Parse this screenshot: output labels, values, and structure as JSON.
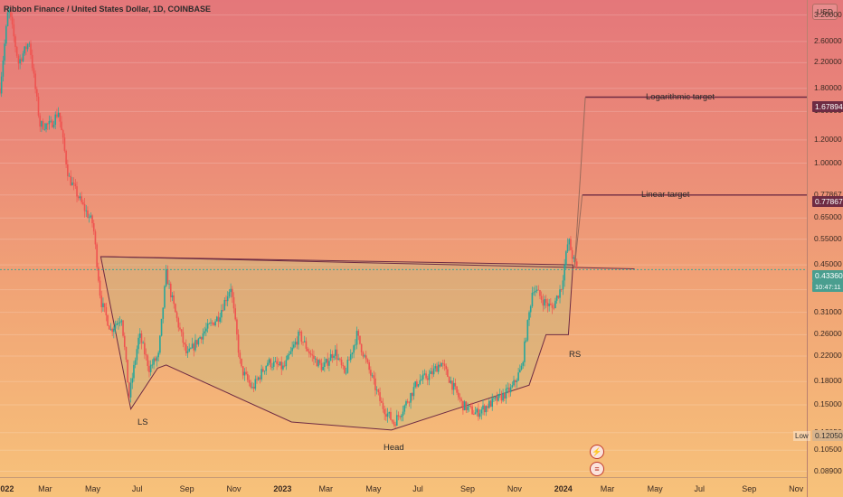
{
  "header": {
    "title": "Ribbon Finance / United States Dollar, 1D, COINBASE"
  },
  "currency_button": "USD",
  "price_axis": {
    "ticks": [
      "3.20000",
      "2.60000",
      "2.20000",
      "1.80000",
      "1.50000",
      "1.20000",
      "1.00000",
      "0.77867",
      "0.65000",
      "0.55000",
      "0.45000",
      "0.37000",
      "0.31000",
      "0.26000",
      "0.22000",
      "0.18000",
      "0.15000",
      "0.12050",
      "0.10500",
      "0.08900"
    ]
  },
  "time_axis": {
    "labels": [
      "2022",
      "Mar",
      "May",
      "Jul",
      "Sep",
      "Nov",
      "2023",
      "Mar",
      "May",
      "Jul",
      "Sep",
      "Nov",
      "2024",
      "Mar",
      "May",
      "Jul",
      "Sep",
      "Nov"
    ]
  },
  "price_tags": {
    "log_target": "1.67894",
    "linear_target": "0.77867",
    "current": "0.43360",
    "current_countdown": "10:47:11",
    "low": "0.12050",
    "low_label": "Low"
  },
  "annotations": {
    "log_target_label": "Logarithmic target",
    "linear_target_label": "Linear target",
    "ls": "LS",
    "head": "Head",
    "rs": "RS"
  },
  "icons": [
    "lightning-icon",
    "earnings-icon"
  ],
  "colors": {
    "up": "#26a69a",
    "down": "#ef5350",
    "pattern_line": "#6e2b43",
    "pattern_fill": "rgba(190,190,130,0.35)",
    "target_line": "#6e2b43",
    "current_tag": "#4a9e8f"
  },
  "chart_data": {
    "type": "candlestick",
    "title": "Ribbon Finance / United States Dollar, 1D, COINBASE",
    "y_scale": "log",
    "ylim": [
      0.085,
      3.6
    ],
    "x_range": [
      "2022-01-01",
      "2024-11-15"
    ],
    "path": [
      [
        "2022-01-01",
        1.8
      ],
      [
        "2022-01-12",
        3.4
      ],
      [
        "2022-01-25",
        2.2
      ],
      [
        "2022-02-08",
        2.6
      ],
      [
        "2022-02-22",
        1.35
      ],
      [
        "2022-03-08",
        1.35
      ],
      [
        "2022-03-18",
        1.5
      ],
      [
        "2022-03-31",
        0.9
      ],
      [
        "2022-04-18",
        0.72
      ],
      [
        "2022-05-02",
        0.62
      ],
      [
        "2022-05-12",
        0.34
      ],
      [
        "2022-05-25",
        0.27
      ],
      [
        "2022-06-08",
        0.3
      ],
      [
        "2022-06-18",
        0.16
      ],
      [
        "2022-07-01",
        0.26
      ],
      [
        "2022-07-14",
        0.2
      ],
      [
        "2022-07-26",
        0.22
      ],
      [
        "2022-08-05",
        0.42
      ],
      [
        "2022-08-18",
        0.3
      ],
      [
        "2022-09-01",
        0.22
      ],
      [
        "2022-09-20",
        0.26
      ],
      [
        "2022-10-12",
        0.3
      ],
      [
        "2022-10-28",
        0.38
      ],
      [
        "2022-11-10",
        0.2
      ],
      [
        "2022-11-25",
        0.17
      ],
      [
        "2022-12-15",
        0.21
      ],
      [
        "2023-01-05",
        0.2
      ],
      [
        "2023-01-25",
        0.26
      ],
      [
        "2023-02-10",
        0.22
      ],
      [
        "2023-02-25",
        0.2
      ],
      [
        "2023-03-12",
        0.23
      ],
      [
        "2023-03-25",
        0.19
      ],
      [
        "2023-04-10",
        0.26
      ],
      [
        "2023-04-25",
        0.2
      ],
      [
        "2023-05-12",
        0.15
      ],
      [
        "2023-05-28",
        0.13
      ],
      [
        "2023-06-12",
        0.15
      ],
      [
        "2023-06-28",
        0.18
      ],
      [
        "2023-07-15",
        0.19
      ],
      [
        "2023-07-28",
        0.21
      ],
      [
        "2023-08-10",
        0.18
      ],
      [
        "2023-08-25",
        0.15
      ],
      [
        "2023-09-12",
        0.14
      ],
      [
        "2023-09-28",
        0.15
      ],
      [
        "2023-10-15",
        0.16
      ],
      [
        "2023-10-28",
        0.17
      ],
      [
        "2023-11-10",
        0.2
      ],
      [
        "2023-11-25",
        0.38
      ],
      [
        "2023-12-08",
        0.34
      ],
      [
        "2023-12-20",
        0.32
      ],
      [
        "2024-01-01",
        0.38
      ],
      [
        "2024-01-10",
        0.55
      ],
      [
        "2024-01-16",
        0.47
      ],
      [
        "2024-01-22",
        0.4336
      ]
    ],
    "pattern": {
      "name": "inverse head and shoulders",
      "neckline": [
        [
          "2022-05-12",
          0.48
        ],
        [
          "2024-02-15",
          0.435
        ]
      ],
      "left_shoulder_low": [
        "2022-06-20",
        0.145
      ],
      "head_low": [
        "2023-05-25",
        0.123
      ],
      "right_shoulder_low": [
        "2023-12-20",
        0.26
      ]
    },
    "targets": [
      {
        "name": "Logarithmic target",
        "value": 1.67894
      },
      {
        "name": "Linear target",
        "value": 0.77867
      }
    ],
    "last_price": 0.4336,
    "low": 0.1205
  }
}
